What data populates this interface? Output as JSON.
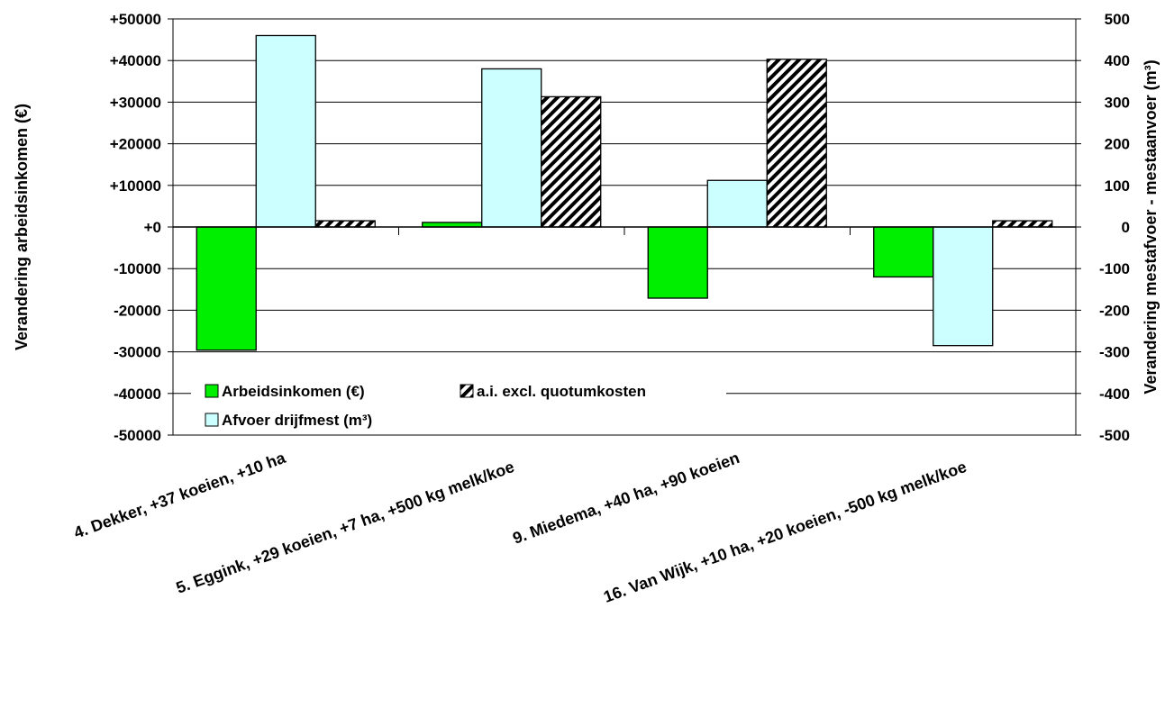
{
  "chart_data": {
    "type": "bar",
    "categories": [
      "4. Dekker, +37 koeien, +10 ha",
      "5. Eggink, +29 koeien, +7 ha, +500 kg melk/koe",
      "9. Miedema, +40 ha, +90 koeien",
      "16. Van Wijk, +10 ha, +20 koeien, -500 kg melk/koe"
    ],
    "series": [
      {
        "name": "Arbeidsinkomen (€)",
        "axis": "left",
        "color": "#00ee00",
        "pattern": "solid",
        "values": [
          -29600,
          1100,
          -17100,
          -12000
        ]
      },
      {
        "name": "Afvoer drijfmest (m³)",
        "axis": "right",
        "color": "#ccffff",
        "pattern": "solid",
        "values": [
          460,
          380,
          112,
          -285
        ]
      },
      {
        "name": "a.i. excl. quotumkosten",
        "axis": "left",
        "color": "#000000",
        "pattern": "diagonal-hatch",
        "values": [
          1500,
          31300,
          40300,
          1500
        ]
      }
    ],
    "ylabel": "Verandering arbeidsinkomen (€)",
    "y2label": "Verandering mestafvoer - mestaanvoer (m³)",
    "ylim": [
      -50000,
      50000
    ],
    "y2lim": [
      -500,
      500
    ],
    "yticks": [
      "+50000",
      "+40000",
      "+30000",
      "+20000",
      "+10000",
      "+0",
      "-10000",
      "-20000",
      "-30000",
      "-40000",
      "-50000"
    ],
    "y2ticks": [
      "500",
      "400",
      "300",
      "200",
      "100",
      "0",
      "-100",
      "-200",
      "-300",
      "-400",
      "-500"
    ],
    "grid": true,
    "legend": "bottom-left"
  }
}
